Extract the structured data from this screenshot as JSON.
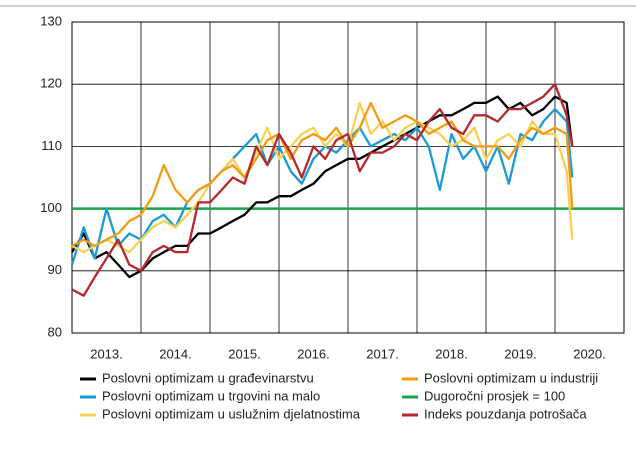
{
  "chart_data": {
    "type": "line",
    "x": [
      2013,
      2013.17,
      2013.33,
      2013.5,
      2013.67,
      2013.83,
      2014,
      2014.17,
      2014.33,
      2014.5,
      2014.67,
      2014.83,
      2015,
      2015.17,
      2015.33,
      2015.5,
      2015.67,
      2015.83,
      2016,
      2016.17,
      2016.33,
      2016.5,
      2016.67,
      2016.83,
      2017,
      2017.17,
      2017.33,
      2017.5,
      2017.67,
      2017.83,
      2018,
      2018.17,
      2018.33,
      2018.5,
      2018.67,
      2018.83,
      2019,
      2019.17,
      2019.33,
      2019.5,
      2019.67,
      2019.83,
      2020,
      2020.17,
      2020.25
    ],
    "xlim": [
      2013,
      2021
    ],
    "xticks": [
      {
        "value": 2013.5,
        "label": "2013."
      },
      {
        "value": 2014.5,
        "label": "2014."
      },
      {
        "value": 2015.5,
        "label": "2015."
      },
      {
        "value": 2016.5,
        "label": "2016."
      },
      {
        "value": 2017.5,
        "label": "2017."
      },
      {
        "value": 2018.5,
        "label": "2018."
      },
      {
        "value": 2019.5,
        "label": "2019."
      },
      {
        "value": 2020.5,
        "label": "2020."
      }
    ],
    "ylim": [
      80,
      130
    ],
    "yticks": [
      80,
      90,
      100,
      110,
      120,
      130
    ],
    "grid": true,
    "series": [
      {
        "name": "Poslovni optimizam u građevinarstvu",
        "color": "#000000",
        "values": [
          93,
          96,
          92,
          93,
          91,
          89,
          90,
          92,
          93,
          94,
          94,
          96,
          96,
          97,
          98,
          99,
          101,
          101,
          102,
          102,
          103,
          104,
          106,
          107,
          108,
          108,
          109,
          110,
          111,
          112,
          113,
          114,
          115,
          115,
          116,
          117,
          117,
          118,
          116,
          117,
          115,
          116,
          118,
          117,
          110
        ]
      },
      {
        "name": "Poslovni optimizam u trgovini na malo",
        "color": "#1a9bd7",
        "values": [
          91,
          97,
          92,
          100,
          94,
          96,
          95,
          98,
          99,
          97,
          101,
          103,
          104,
          106,
          108,
          110,
          112,
          107,
          110,
          106,
          104,
          108,
          110,
          109,
          111,
          113,
          110,
          111,
          112,
          111,
          113,
          110,
          103,
          112,
          108,
          110,
          106,
          110,
          104,
          112,
          111,
          114,
          116,
          114,
          105
        ]
      },
      {
        "name": "Poslovni optimizam u uslužnim djelatnostima",
        "color": "#f7d154",
        "values": [
          94,
          93,
          94,
          95,
          94,
          93,
          95,
          97,
          98,
          97,
          99,
          101,
          104,
          106,
          108,
          105,
          109,
          113,
          108,
          110,
          112,
          113,
          110,
          112,
          110,
          117,
          112,
          114,
          111,
          113,
          114,
          113,
          112,
          110,
          111,
          113,
          108,
          111,
          112,
          110,
          114,
          112,
          112,
          106,
          95
        ]
      },
      {
        "name": "Poslovni optimizam u industriji",
        "color": "#f39c12",
        "values": [
          94,
          95,
          94,
          95,
          96,
          98,
          99,
          102,
          107,
          103,
          101,
          103,
          104,
          106,
          107,
          105,
          108,
          111,
          112,
          108,
          111,
          112,
          111,
          113,
          110,
          113,
          117,
          113,
          114,
          115,
          114,
          112,
          113,
          114,
          111,
          110,
          110,
          110,
          108,
          111,
          113,
          112,
          113,
          112,
          100
        ]
      },
      {
        "name": "Indeks pouzdanja potrošača",
        "color": "#b5282e",
        "values": [
          87,
          86,
          89,
          92,
          95,
          91,
          90,
          93,
          94,
          93,
          93,
          101,
          101,
          103,
          105,
          104,
          110,
          107,
          112,
          109,
          105,
          110,
          108,
          111,
          112,
          106,
          109,
          109,
          110,
          112,
          111,
          114,
          116,
          113,
          112,
          115,
          115,
          114,
          116,
          116,
          117,
          118,
          120,
          115,
          110
        ]
      }
    ],
    "reference": {
      "name": "Dugoročni prosjek = 100",
      "color": "#1aa34a",
      "value": 100
    }
  }
}
